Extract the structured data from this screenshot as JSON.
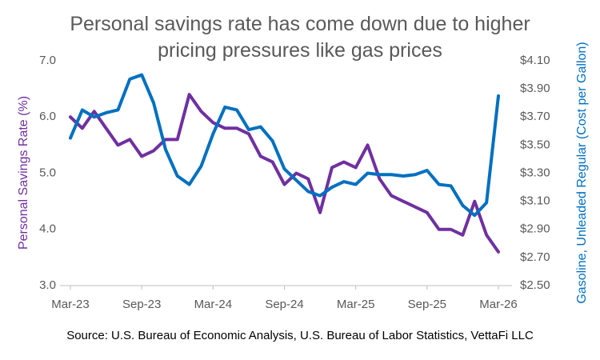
{
  "chart_data": {
    "type": "line",
    "title": "Personal savings rate has come down due to higher pricing pressures like gas prices",
    "source": "Source: U.S. Bureau of Economic Analysis, U.S. Bureau of Labor Statistics, VettaFi LLC",
    "y_label": "Personal Savings Rate (%)",
    "y2_label": "Gasoline, Unleaded Regular (Cost per Gallon)",
    "categories": [
      "Mar-23",
      null,
      null,
      null,
      null,
      null,
      "Sep-23",
      null,
      null,
      null,
      null,
      null,
      "Mar-24",
      null,
      null,
      null,
      null,
      null,
      "Sep-24",
      null,
      null,
      null,
      null,
      null,
      "Mar-25",
      null,
      null,
      null,
      null,
      null,
      "Sep-25",
      null,
      null,
      null,
      null,
      null,
      "Mar-26"
    ],
    "ylim": [
      3.0,
      7.0
    ],
    "yticks": [
      {
        "value": 3,
        "label": "3.0"
      },
      3.5,
      4,
      {
        "value": 4,
        "label": "4.0"
      },
      4.5,
      5,
      {
        "value": 5,
        "label": "5.0"
      },
      5.5,
      6,
      {
        "value": 6,
        "label": "6.0"
      },
      6.5,
      7,
      {
        "value": 7,
        "label": "7.0"
      }
    ],
    "y2lim": [
      2.5,
      4.1
    ],
    "y2ticks": [
      {
        "value": 2.5,
        "label": "$2.50"
      },
      {
        "value": 2.7,
        "label": "$2.70"
      },
      {
        "value": 2.9,
        "label": "$2.90"
      },
      {
        "value": 3.1,
        "label": "$3.10"
      },
      {
        "value": 3.3,
        "label": "$3.30"
      },
      {
        "value": 3.5,
        "label": "$3.50"
      },
      {
        "value": 3.7,
        "label": "$3.70"
      },
      {
        "value": 3.9,
        "label": "$3.90"
      },
      {
        "value": 4.1,
        "label": "$4.10"
      }
    ],
    "grid": false,
    "series": [
      {
        "color": "#7030a0",
        "axis": "y",
        "values": [
          6.0,
          5.8,
          6.1,
          5.8,
          5.5,
          5.6,
          5.3,
          5.4,
          5.6,
          5.6,
          6.4,
          6.1,
          5.9,
          5.8,
          5.8,
          5.7,
          5.3,
          5.2,
          4.8,
          5.0,
          4.9,
          4.3,
          5.1,
          5.2,
          5.1,
          5.5,
          4.9,
          4.6,
          4.5,
          4.4,
          4.3,
          4.0,
          4.0,
          3.9,
          4.5,
          3.9,
          3.6
        ]
      },
      {
        "color": "#0070c0",
        "axis": "y2",
        "values": [
          3.55,
          3.75,
          3.7,
          3.73,
          3.75,
          3.97,
          4.0,
          3.8,
          3.47,
          3.28,
          3.22,
          3.35,
          3.58,
          3.77,
          3.75,
          3.61,
          3.63,
          3.53,
          3.33,
          3.25,
          3.17,
          3.14,
          3.2,
          3.24,
          3.22,
          3.3,
          3.29,
          3.29,
          3.28,
          3.29,
          3.32,
          3.22,
          3.21,
          3.07,
          3.0,
          3.09,
          3.85
        ]
      }
    ]
  }
}
